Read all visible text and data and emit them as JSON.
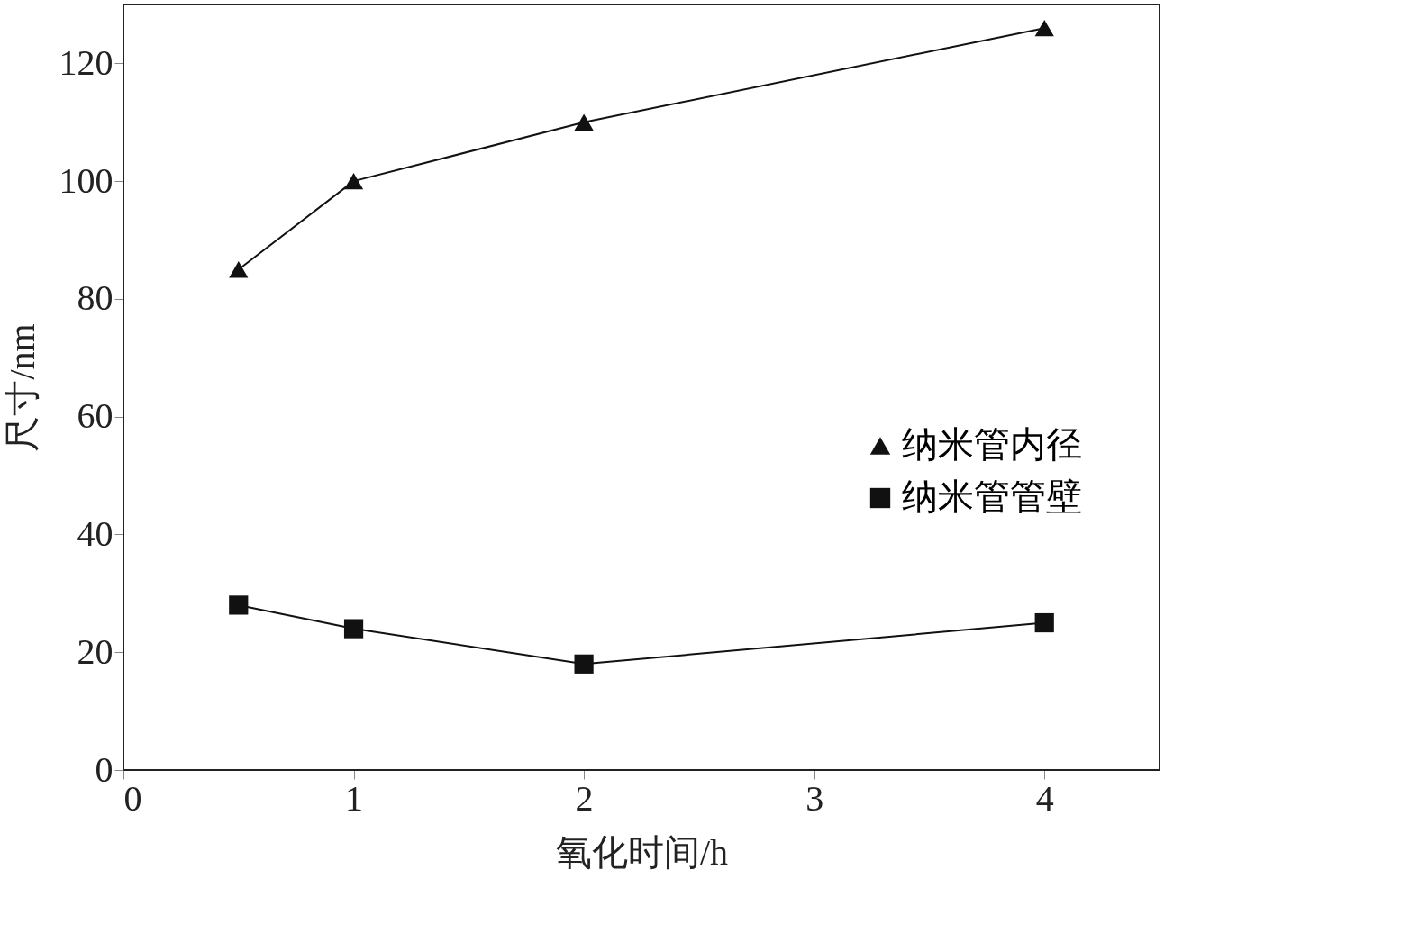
{
  "chart_data": {
    "type": "line",
    "xlabel": "氧化时间/h",
    "ylabel": "尺寸/nm",
    "x": [
      0.5,
      1,
      2,
      4
    ],
    "series": [
      {
        "name": "纳米管内径",
        "color": "#111111",
        "marker": "triangle",
        "values": [
          85,
          100,
          110,
          126
        ]
      },
      {
        "name": "纳米管管壁",
        "color": "#111111",
        "marker": "square",
        "values": [
          28,
          24,
          18,
          25
        ]
      }
    ],
    "xlim": [
      0,
      4.5
    ],
    "xticks": [
      0,
      1,
      2,
      3,
      4
    ],
    "ylim": [
      0,
      130
    ],
    "yticks": [
      0,
      20,
      40,
      60,
      80,
      100,
      120
    ],
    "grid": false,
    "legend": "right",
    "line_style": "solid"
  }
}
